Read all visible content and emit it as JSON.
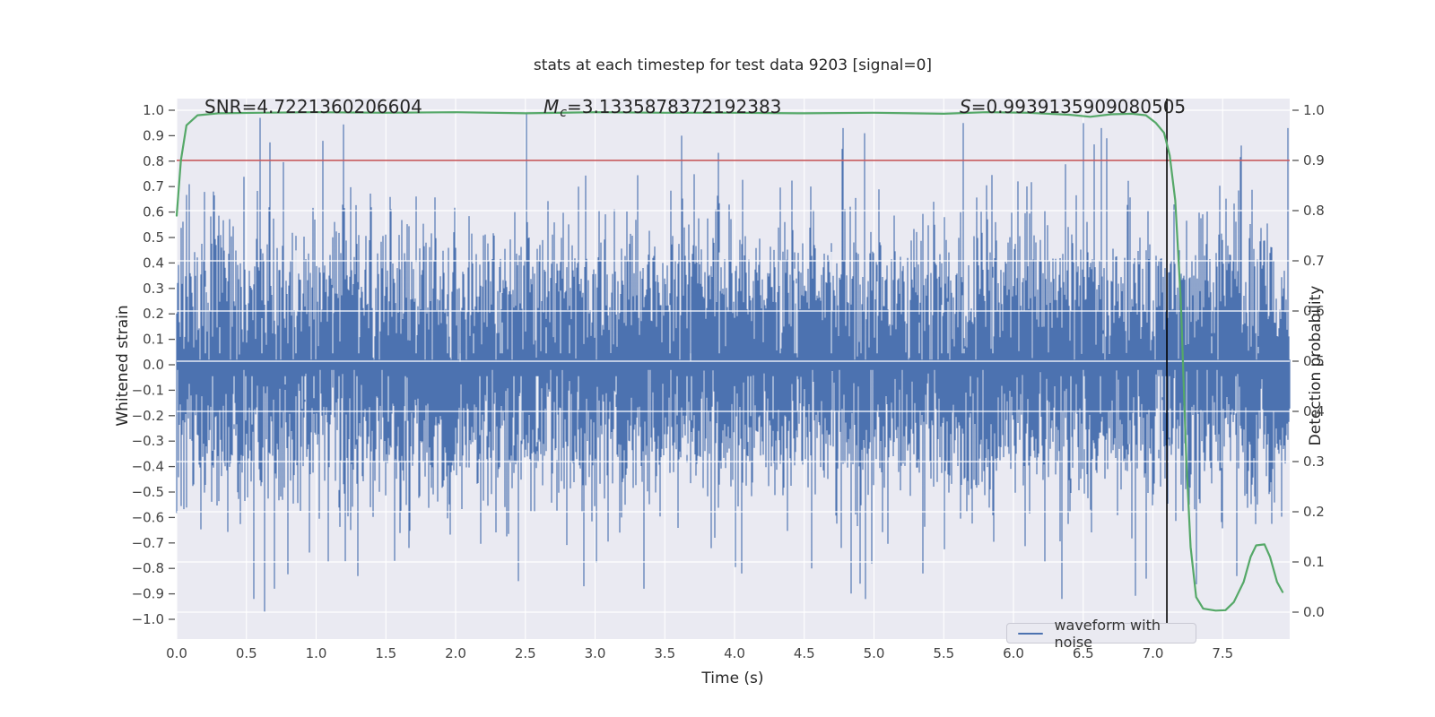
{
  "title": "stats at each timestep for test data 9203 [signal=0]",
  "annotations": {
    "snr": {
      "label": "SNR",
      "value": "=4.7221360206604"
    },
    "mc": {
      "label": "M",
      "sub": "c",
      "value": "=3.1335878372192383"
    },
    "s": {
      "label": "S",
      "value": "=0.9939135909080505"
    }
  },
  "legend": {
    "entries": [
      "waveform with noise"
    ],
    "position": "lower right"
  },
  "chart_data": {
    "type": "line",
    "title": "stats at each timestep for test data 9203 [signal=0]",
    "xlabel": "Time (s)",
    "ylabel_left": "Whitened strain",
    "ylabel_right": "Detection probability",
    "xlim": [
      0,
      7.98
    ],
    "ylim_left": [
      -1.06,
      1.05
    ],
    "ylim_right": [
      -0.054,
      1.023
    ],
    "grid": true,
    "background": "#eaeaf2",
    "grid_color": "#ffffff",
    "x_ticks": [
      "0.0",
      "0.5",
      "1.0",
      "1.5",
      "2.0",
      "2.5",
      "3.0",
      "3.5",
      "4.0",
      "4.5",
      "5.0",
      "5.5",
      "6.0",
      "6.5",
      "7.0",
      "7.5"
    ],
    "left_ticks": [
      "1.0",
      "0.9",
      "0.8",
      "0.7",
      "0.6",
      "0.5",
      "0.4",
      "0.3",
      "0.2",
      "0.1",
      "0.0",
      "−0.1",
      "−0.2",
      "−0.3",
      "−0.4",
      "−0.5",
      "−0.6",
      "−0.7",
      "−0.8",
      "−0.9",
      "−1.0"
    ],
    "right_ticks": [
      "1.0",
      "0.9",
      "0.8",
      "0.7",
      "0.6",
      "0.5",
      "0.4",
      "0.3",
      "0.2",
      "0.1",
      "0.0"
    ],
    "stats": {
      "SNR": "4.7221360206604",
      "Mc": "3.1335878372192383",
      "S": "0.9939135909080505"
    },
    "series": [
      {
        "name": "waveform with noise",
        "axis": "left",
        "color": "#4c72b0",
        "kind": "gaussian-noise",
        "params": {
          "seed": 920311,
          "sigma": 0.25,
          "samples_per_column": 6,
          "hairline_probability": 0.03,
          "spikes_positive": [
            [
              0.6,
              0.97
            ],
            [
              1.05,
              0.88
            ],
            [
              2.51,
              0.99
            ],
            [
              3.62,
              0.9
            ],
            [
              4.78,
              0.93
            ],
            [
              4.93,
              0.91
            ],
            [
              5.64,
              0.95
            ],
            [
              6.63,
              0.93
            ],
            [
              6.67,
              0.89
            ],
            [
              7.97,
              0.93
            ]
          ],
          "spikes_negative": [
            [
              0.55,
              -0.92
            ],
            [
              0.63,
              -0.97
            ],
            [
              0.7,
              -0.88
            ],
            [
              1.3,
              -0.83
            ],
            [
              2.45,
              -0.85
            ],
            [
              2.92,
              -0.87
            ],
            [
              3.35,
              -0.88
            ],
            [
              4.05,
              -0.82
            ],
            [
              4.55,
              -0.8
            ],
            [
              4.9,
              -0.86
            ],
            [
              5.35,
              -0.82
            ],
            [
              6.35,
              -0.92
            ],
            [
              6.95,
              -0.84
            ],
            [
              7.6,
              -0.83
            ]
          ]
        }
      },
      {
        "name": "detection probability",
        "axis": "right",
        "color": "#55a868",
        "kind": "line",
        "points": [
          [
            0.0,
            0.79
          ],
          [
            0.03,
            0.9
          ],
          [
            0.07,
            0.97
          ],
          [
            0.15,
            0.99
          ],
          [
            0.3,
            0.994
          ],
          [
            0.6,
            0.995
          ],
          [
            1.0,
            0.996
          ],
          [
            1.5,
            0.995
          ],
          [
            2.0,
            0.996
          ],
          [
            2.5,
            0.994
          ],
          [
            3.0,
            0.996
          ],
          [
            3.5,
            0.995
          ],
          [
            4.0,
            0.995
          ],
          [
            4.5,
            0.994
          ],
          [
            5.0,
            0.995
          ],
          [
            5.5,
            0.993
          ],
          [
            5.8,
            0.996
          ],
          [
            6.1,
            0.995
          ],
          [
            6.4,
            0.991
          ],
          [
            6.55,
            0.987
          ],
          [
            6.7,
            0.992
          ],
          [
            6.85,
            0.993
          ],
          [
            6.95,
            0.99
          ],
          [
            7.02,
            0.975
          ],
          [
            7.08,
            0.955
          ],
          [
            7.12,
            0.91
          ],
          [
            7.16,
            0.82
          ],
          [
            7.2,
            0.62
          ],
          [
            7.24,
            0.3
          ],
          [
            7.27,
            0.13
          ],
          [
            7.31,
            0.03
          ],
          [
            7.36,
            0.007
          ],
          [
            7.45,
            0.003
          ],
          [
            7.52,
            0.004
          ],
          [
            7.58,
            0.02
          ],
          [
            7.65,
            0.06
          ],
          [
            7.7,
            0.11
          ],
          [
            7.74,
            0.133
          ],
          [
            7.8,
            0.135
          ],
          [
            7.84,
            0.11
          ],
          [
            7.89,
            0.06
          ],
          [
            7.93,
            0.04
          ]
        ]
      },
      {
        "name": "threshold",
        "axis": "right",
        "color": "#c44e52",
        "kind": "hline",
        "y": 0.9
      },
      {
        "name": "event-marker",
        "axis": "x",
        "color": "#000000",
        "kind": "vline",
        "x": 7.1
      }
    ]
  }
}
